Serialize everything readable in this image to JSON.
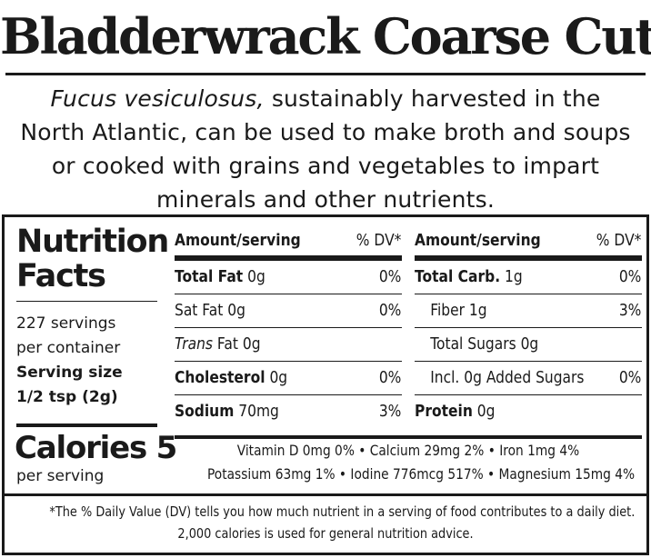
{
  "title": "Bladderwrack Coarse Cut",
  "description": {
    "latin_name": "Fucus vesiculosus,",
    "line1_rest": " sustainably harvested in the",
    "line2": "North Atlantic, can be used to make broth and soups",
    "line3": "or cooked with grains and vegetables to impart",
    "line4": "minerals and other nutrients."
  },
  "nutrition": {
    "heading_line1": "Nutrition",
    "heading_line2": "Facts",
    "servings_line1": "227 servings",
    "servings_line2": "per container",
    "serving_size_line1": "Serving size",
    "serving_size_line2": "1/2 tsp (2g)",
    "calories": "Calories 5",
    "per_serving": "per serving",
    "col_header_amount": "Amount/serving",
    "col_header_dv": "% DV*",
    "left_col": [
      {
        "label": "Total Fat",
        "amount": "0g",
        "dv": "0%"
      },
      {
        "label": "Sat Fat",
        "amount": "0g",
        "dv": "0%"
      },
      {
        "label": "Trans",
        "label_rest": " Fat",
        "amount": "0g",
        "dv": ""
      },
      {
        "label": "Cholesterol",
        "amount": "0g",
        "dv": "0%"
      },
      {
        "label": "Sodium",
        "amount": "70mg",
        "dv": "3%"
      }
    ],
    "right_col": [
      {
        "label": "Total Carb.",
        "amount": "1g",
        "dv": "0%"
      },
      {
        "label": "Fiber",
        "amount": "1g",
        "dv": "3%"
      },
      {
        "label": "Total Sugars",
        "amount": "0g",
        "dv": ""
      },
      {
        "label": "Incl. 0g",
        "label_rest": "Added Sugars",
        "amount": "",
        "dv": "0%"
      },
      {
        "label": "Protein",
        "amount": "0g",
        "dv": ""
      }
    ],
    "vitamins_line1": "Vitamin D 0mg 0% • Calcium 29mg 2% • Iron 1mg 4%",
    "vitamins_line2": "Potassium 63mg 1% • Iodine 776mcg 517% • Magnesium 15mg 4%",
    "footnote_line1": "*The % Daily Value (DV) tells you how much nutrient in a serving of food contributes to a daily diet.",
    "footnote_line2": "2,000 calories is used for general nutrition advice."
  }
}
